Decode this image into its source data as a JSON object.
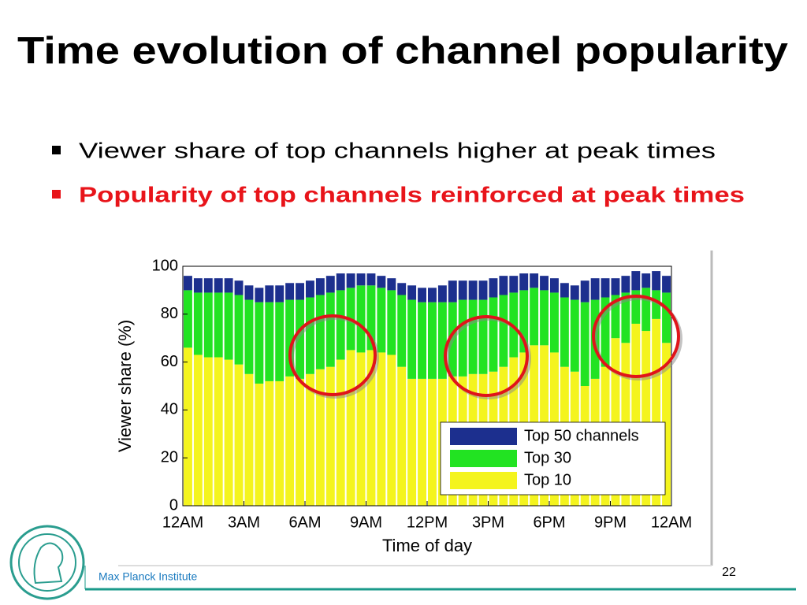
{
  "title": "Time evolution of channel popularity",
  "bullets": [
    "Viewer share of top channels higher at peak times",
    "Popularity of top channels reinforced at peak times"
  ],
  "footer": {
    "institute": "Max Planck Institute",
    "page": "22"
  },
  "chart_data": {
    "type": "bar",
    "stacked": true,
    "xlabel": "Time of day",
    "ylabel": "Viewer share (%)",
    "x": [
      0,
      0.5,
      1,
      1.5,
      2,
      2.5,
      3,
      3.5,
      4,
      4.5,
      5,
      5.5,
      6,
      6.5,
      7,
      7.5,
      8,
      8.5,
      9,
      9.5,
      10,
      10.5,
      11,
      11.5,
      12,
      12.5,
      13,
      13.5,
      14,
      14.5,
      15,
      15.5,
      16,
      16.5,
      17,
      17.5,
      18,
      18.5,
      19,
      19.5,
      20,
      20.5,
      21,
      21.5,
      22,
      22.5,
      23,
      23.5
    ],
    "xlim": [
      0,
      24
    ],
    "xticks": [
      {
        "value": 0,
        "label": "12AM"
      },
      {
        "value": 3,
        "label": "3AM"
      },
      {
        "value": 6,
        "label": "6AM"
      },
      {
        "value": 9,
        "label": "9AM"
      },
      {
        "value": 12,
        "label": "12PM"
      },
      {
        "value": 15,
        "label": "3PM"
      },
      {
        "value": 18,
        "label": "6PM"
      },
      {
        "value": 21,
        "label": "9PM"
      },
      {
        "value": 24,
        "label": "12AM"
      }
    ],
    "ylim": [
      0,
      100
    ],
    "yticks": [
      0,
      20,
      40,
      60,
      80,
      100
    ],
    "legend": "lower right",
    "series": [
      {
        "name": "Top 10",
        "color": "#f4f41e",
        "values": [
          66,
          63,
          62,
          62,
          61,
          59,
          55,
          51,
          52,
          52,
          54,
          53,
          55,
          57,
          58,
          61,
          65,
          64,
          65,
          64,
          63,
          58,
          53,
          53,
          53,
          53,
          54,
          54,
          55,
          55,
          56,
          58,
          62,
          64,
          67,
          67,
          64,
          58,
          56,
          50,
          53,
          58,
          70,
          68,
          76,
          73,
          78,
          68
        ]
      },
      {
        "name": "Top 30",
        "color": "#22e322",
        "values": [
          24,
          26,
          27,
          27,
          28,
          29,
          31,
          34,
          33,
          33,
          32,
          33,
          32,
          31,
          31,
          29,
          26,
          28,
          27,
          27,
          27,
          30,
          33,
          32,
          32,
          32,
          31,
          32,
          31,
          31,
          31,
          30,
          27,
          26,
          24,
          23,
          25,
          29,
          30,
          35,
          33,
          29,
          18,
          21,
          14,
          18,
          12,
          21
        ]
      },
      {
        "name": "Top 50 channels",
        "color": "#1c2f8e",
        "values": [
          6,
          6,
          6,
          6,
          6,
          6,
          6,
          6,
          7,
          7,
          7,
          7,
          7,
          7,
          7,
          7,
          6,
          5,
          5,
          5,
          5,
          5,
          6,
          6,
          6,
          7,
          9,
          8,
          8,
          8,
          8,
          8,
          7,
          7,
          6,
          6,
          6,
          6,
          6,
          9,
          9,
          8,
          7,
          7,
          8,
          6,
          8,
          7
        ]
      }
    ]
  }
}
